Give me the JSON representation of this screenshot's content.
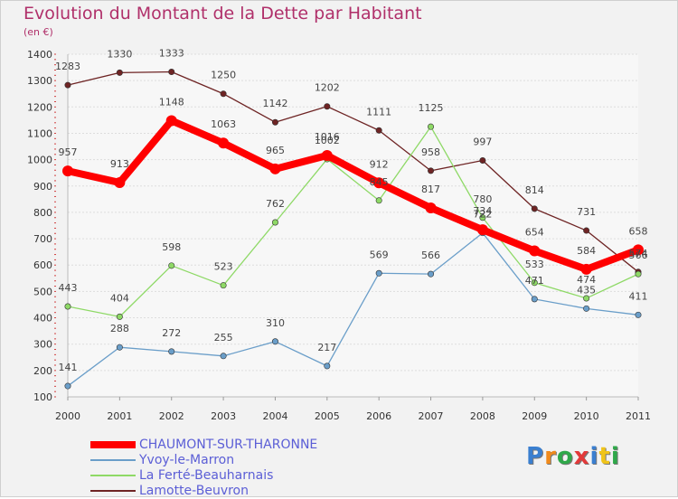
{
  "header": {
    "title": "Evolution du Montant de la Dette par Habitant",
    "unit": "(en €)"
  },
  "logo": {
    "text": "Proxiti",
    "colors": [
      "#3a7fd0",
      "#f08a1c",
      "#2fa84a",
      "#e23a3a",
      "#3a7fd0",
      "#f0c419",
      "#2fa84a"
    ]
  },
  "chart_data": {
    "type": "line",
    "title": "Evolution du Montant de la Dette par Habitant",
    "ylabel": "(en €)",
    "xlabel": "",
    "x": [
      "2000",
      "2001",
      "2002",
      "2003",
      "2004",
      "2005",
      "2006",
      "2007",
      "2008",
      "2009",
      "2010",
      "2011"
    ],
    "ylim": [
      100,
      1400
    ],
    "yticks": [
      100,
      200,
      300,
      400,
      500,
      600,
      700,
      800,
      900,
      1000,
      1100,
      1200,
      1300,
      1400
    ],
    "grid": "horizontal",
    "legend": "bottom-left",
    "series": [
      {
        "name": "Lamotte-Beuvron",
        "color": "#6e2424",
        "values": [
          1283,
          1330,
          1333,
          1250,
          1142,
          1202,
          1111,
          958,
          997,
          814,
          731,
          574
        ]
      },
      {
        "name": "La Ferté-Beauharnais",
        "color": "#8ed966",
        "values": [
          443,
          404,
          598,
          523,
          762,
          1002,
          845,
          1125,
          780,
          533,
          474,
          566
        ]
      },
      {
        "name": "Yvoy-le-Marron",
        "color": "#6a9ec9",
        "values": [
          141,
          288,
          272,
          255,
          310,
          217,
          569,
          566,
          722,
          471,
          435,
          411
        ]
      },
      {
        "name": "CHAUMONT-SUR-THARONNE",
        "color": "#ff0000",
        "values": [
          957,
          913,
          1148,
          1063,
          965,
          1016,
          912,
          817,
          734,
          654,
          584,
          658
        ]
      }
    ],
    "legend_order": [
      "CHAUMONT-SUR-THARONNE",
      "Yvoy-le-Marron",
      "La Ferté-Beauharnais",
      "Lamotte-Beuvron"
    ]
  }
}
